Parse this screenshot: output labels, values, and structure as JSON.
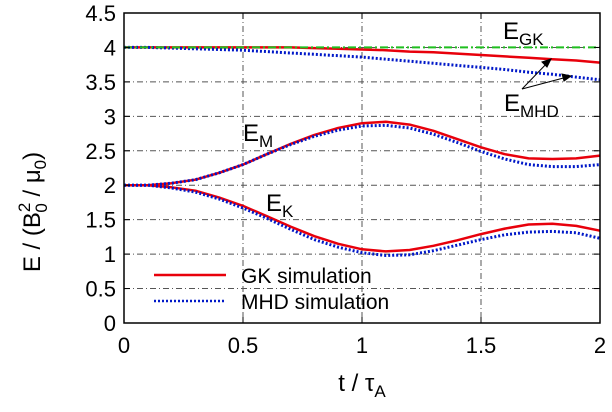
{
  "chart_data": {
    "type": "line",
    "xlabel": "t / τ_A",
    "ylabel": "E / (B_0^2 / μ_0)",
    "xlim": [
      0,
      2
    ],
    "ylim": [
      0,
      4.5
    ],
    "xticks": [
      "0",
      "0.5",
      "1",
      "1.5",
      "2"
    ],
    "yticks": [
      "0",
      "0.5",
      "1",
      "1.5",
      "2",
      "2.5",
      "3",
      "3.5",
      "4",
      "4.5"
    ],
    "grid": true,
    "legend_position": "bottom-left",
    "legend": [
      {
        "label": "GK simulation",
        "color": "#e8000b",
        "style": "solid"
      },
      {
        "label": "MHD simulation",
        "color": "#0018c8",
        "style": "dotted"
      }
    ],
    "annotations": {
      "E_GK": {
        "base": "E",
        "sub": "GK"
      },
      "E_MHD": {
        "base": "E",
        "sub": "MHD"
      },
      "E_M": {
        "base": "E",
        "sub": "M"
      },
      "E_K": {
        "base": "E",
        "sub": "K"
      }
    },
    "x": [
      0,
      0.1,
      0.2,
      0.3,
      0.4,
      0.5,
      0.6,
      0.7,
      0.8,
      0.9,
      1.0,
      1.1,
      1.2,
      1.3,
      1.4,
      1.5,
      1.6,
      1.7,
      1.8,
      1.9,
      2.0
    ],
    "series": [
      {
        "group": "total",
        "model": "GK",
        "color": "#e8000b",
        "dash": "solid",
        "values": [
          4.0,
          4.0,
          4.0,
          4.0,
          4.0,
          4.0,
          4.0,
          4.0,
          3.99,
          3.98,
          3.97,
          3.96,
          3.94,
          3.93,
          3.91,
          3.89,
          3.87,
          3.85,
          3.83,
          3.81,
          3.78
        ]
      },
      {
        "group": "total",
        "model": "MHD",
        "color": "#0018c8",
        "dash": "dotted",
        "values": [
          4.0,
          4.0,
          3.99,
          3.98,
          3.97,
          3.96,
          3.94,
          3.92,
          3.9,
          3.88,
          3.86,
          3.83,
          3.8,
          3.77,
          3.74,
          3.71,
          3.68,
          3.64,
          3.61,
          3.57,
          3.53
        ]
      },
      {
        "group": "total",
        "model": "GK-constant",
        "color": "#1fbf1f",
        "dash": "dashdot",
        "values": [
          4.0,
          4.0,
          4.0,
          4.0,
          4.0,
          4.0,
          4.0,
          4.0,
          4.0,
          4.0,
          4.0,
          4.0,
          4.0,
          4.0,
          4.0,
          4.0,
          4.0,
          4.0,
          4.0,
          4.0,
          4.0
        ]
      },
      {
        "group": "magnetic",
        "model": "GK",
        "color": "#e8000b",
        "dash": "solid",
        "values": [
          2.0,
          2.0,
          2.03,
          2.08,
          2.18,
          2.3,
          2.45,
          2.6,
          2.73,
          2.83,
          2.9,
          2.92,
          2.88,
          2.79,
          2.67,
          2.55,
          2.45,
          2.39,
          2.38,
          2.39,
          2.43
        ]
      },
      {
        "group": "magnetic",
        "model": "MHD",
        "color": "#0018c8",
        "dash": "dotted",
        "values": [
          2.0,
          2.0,
          2.03,
          2.08,
          2.18,
          2.3,
          2.45,
          2.59,
          2.71,
          2.8,
          2.86,
          2.87,
          2.83,
          2.74,
          2.62,
          2.49,
          2.38,
          2.3,
          2.27,
          2.27,
          2.3
        ]
      },
      {
        "group": "kinetic",
        "model": "GK",
        "color": "#e8000b",
        "dash": "solid",
        "values": [
          2.0,
          2.0,
          1.97,
          1.92,
          1.82,
          1.7,
          1.55,
          1.4,
          1.26,
          1.15,
          1.07,
          1.04,
          1.06,
          1.12,
          1.2,
          1.29,
          1.37,
          1.43,
          1.44,
          1.41,
          1.34
        ]
      },
      {
        "group": "kinetic",
        "model": "MHD",
        "color": "#0018c8",
        "dash": "dotted",
        "values": [
          2.0,
          2.0,
          1.96,
          1.9,
          1.8,
          1.67,
          1.52,
          1.36,
          1.21,
          1.1,
          1.02,
          0.98,
          0.99,
          1.05,
          1.13,
          1.21,
          1.28,
          1.32,
          1.33,
          1.31,
          1.23
        ]
      }
    ]
  }
}
